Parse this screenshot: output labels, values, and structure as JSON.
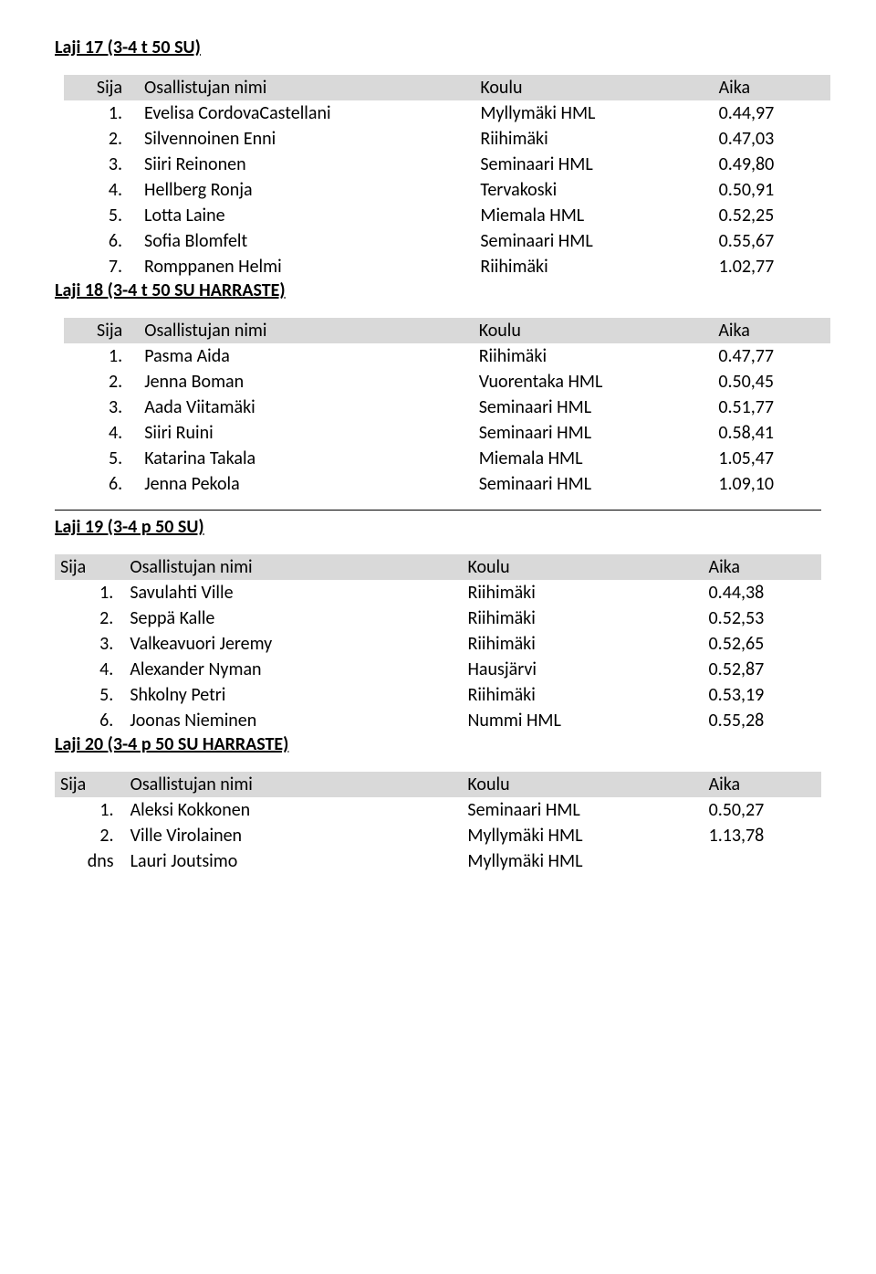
{
  "header_labels": {
    "sija": "Sija",
    "nimi": "Osallistujan nimi",
    "koulu": "Koulu",
    "aika": "Aika"
  },
  "sections": [
    {
      "title": "Laji 17 (3-4 t 50 SU)",
      "indented": true,
      "divider_after": false,
      "rows": [
        {
          "sija": "1.",
          "nimi": "Evelisa CordovaCastellani",
          "koulu": "Myllymäki HML",
          "aika": "0.44,97"
        },
        {
          "sija": "2.",
          "nimi": "Silvennoinen Enni",
          "koulu": "Riihimäki",
          "aika": "0.47,03"
        },
        {
          "sija": "3.",
          "nimi": "Siiri Reinonen",
          "koulu": "Seminaari HML",
          "aika": "0.49,80"
        },
        {
          "sija": "4.",
          "nimi": "Hellberg Ronja",
          "koulu": "Tervakoski",
          "aika": "0.50,91"
        },
        {
          "sija": "5.",
          "nimi": "Lotta Laine",
          "koulu": "Miemala HML",
          "aika": "0.52,25"
        },
        {
          "sija": "6.",
          "nimi": "Sofia Blomfelt",
          "koulu": "Seminaari HML",
          "aika": "0.55,67"
        },
        {
          "sija": "7.",
          "nimi": "Romppanen Helmi",
          "koulu": "Riihimäki",
          "aika": "1.02,77"
        }
      ]
    },
    {
      "title": "Laji 18 (3-4 t 50 SU HARRASTE)",
      "indented": true,
      "divider_after": true,
      "rows": [
        {
          "sija": "1.",
          "nimi": "Pasma Aida",
          "koulu": "Riihimäki",
          "aika": "0.47,77"
        },
        {
          "sija": "2.",
          "nimi": "Jenna Boman",
          "koulu": "Vuorentaka HML",
          "aika": "0.50,45"
        },
        {
          "sija": "3.",
          "nimi": "Aada Viitamäki",
          "koulu": "Seminaari HML",
          "aika": "0.51,77"
        },
        {
          "sija": "4.",
          "nimi": "Siiri Ruini",
          "koulu": "Seminaari HML",
          "aika": "0.58,41"
        },
        {
          "sija": "5.",
          "nimi": "Katarina Takala",
          "koulu": "Miemala HML",
          "aika": "1.05,47"
        },
        {
          "sija": "6.",
          "nimi": "Jenna Pekola",
          "koulu": "Seminaari HML",
          "aika": "1.09,10"
        }
      ]
    },
    {
      "title": "Laji 19 (3-4 p 50 SU)",
      "indented": false,
      "divider_after": false,
      "rows": [
        {
          "sija": "1.",
          "nimi": "Savulahti Ville",
          "koulu": "Riihimäki",
          "aika": "0.44,38"
        },
        {
          "sija": "2.",
          "nimi": "Seppä Kalle",
          "koulu": "Riihimäki",
          "aika": "0.52,53"
        },
        {
          "sija": "3.",
          "nimi": "Valkeavuori Jeremy",
          "koulu": "Riihimäki",
          "aika": "0.52,65"
        },
        {
          "sija": "4.",
          "nimi": "Alexander Nyman",
          "koulu": "Hausjärvi",
          "aika": "0.52,87"
        },
        {
          "sija": "5.",
          "nimi": "Shkolny Petri",
          "koulu": "Riihimäki",
          "aika": "0.53,19"
        },
        {
          "sija": "6.",
          "nimi": "Joonas Nieminen",
          "koulu": "Nummi HML",
          "aika": "0.55,28"
        }
      ]
    },
    {
      "title": "Laji 20 (3-4 p 50 SU HARRASTE)",
      "indented": false,
      "divider_after": false,
      "rows": [
        {
          "sija": "1.",
          "nimi": "Aleksi Kokkonen",
          "koulu": "Seminaari HML",
          "aika": "0.50,27"
        },
        {
          "sija": "2.",
          "nimi": "Ville Virolainen",
          "koulu": "Myllymäki HML",
          "aika": "1.13,78"
        },
        {
          "sija": "dns",
          "nimi": "Lauri Joutsimo",
          "koulu": "Myllymäki HML",
          "aika": ""
        }
      ]
    }
  ]
}
